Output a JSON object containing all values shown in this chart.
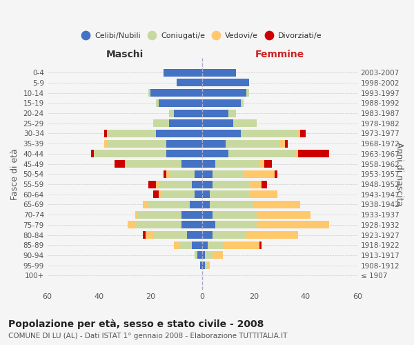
{
  "age_groups": [
    "100+",
    "95-99",
    "90-94",
    "85-89",
    "80-84",
    "75-79",
    "70-74",
    "65-69",
    "60-64",
    "55-59",
    "50-54",
    "45-49",
    "40-44",
    "35-39",
    "30-34",
    "25-29",
    "20-24",
    "15-19",
    "10-14",
    "5-9",
    "0-4"
  ],
  "birth_years": [
    "≤ 1907",
    "1908-1912",
    "1913-1917",
    "1918-1922",
    "1923-1927",
    "1928-1932",
    "1933-1937",
    "1938-1942",
    "1943-1947",
    "1948-1952",
    "1953-1957",
    "1958-1962",
    "1963-1967",
    "1968-1972",
    "1973-1977",
    "1978-1982",
    "1983-1987",
    "1988-1992",
    "1993-1997",
    "1998-2002",
    "2003-2007"
  ],
  "maschi": {
    "celibi": [
      0,
      1,
      2,
      4,
      6,
      8,
      8,
      5,
      3,
      4,
      3,
      8,
      14,
      14,
      18,
      13,
      11,
      17,
      20,
      10,
      15
    ],
    "coniugati": [
      0,
      0,
      1,
      5,
      13,
      18,
      17,
      16,
      13,
      13,
      10,
      22,
      28,
      23,
      19,
      6,
      2,
      1,
      1,
      0,
      0
    ],
    "vedovi": [
      0,
      0,
      0,
      2,
      3,
      3,
      1,
      2,
      1,
      1,
      1,
      0,
      0,
      1,
      0,
      0,
      0,
      0,
      0,
      0,
      0
    ],
    "divorziati": [
      0,
      0,
      0,
      0,
      1,
      0,
      0,
      0,
      2,
      3,
      1,
      4,
      1,
      0,
      1,
      0,
      0,
      0,
      0,
      0,
      0
    ]
  },
  "femmine": {
    "nubili": [
      0,
      1,
      1,
      2,
      4,
      5,
      4,
      3,
      3,
      4,
      4,
      5,
      10,
      9,
      15,
      12,
      10,
      15,
      17,
      18,
      13
    ],
    "coniugate": [
      0,
      1,
      3,
      6,
      13,
      16,
      17,
      17,
      15,
      14,
      12,
      17,
      26,
      21,
      22,
      9,
      3,
      1,
      1,
      0,
      0
    ],
    "vedove": [
      0,
      1,
      4,
      14,
      20,
      28,
      21,
      18,
      11,
      5,
      12,
      2,
      1,
      2,
      1,
      0,
      0,
      0,
      0,
      0,
      0
    ],
    "divorziate": [
      0,
      0,
      0,
      1,
      0,
      0,
      0,
      0,
      0,
      2,
      1,
      3,
      12,
      1,
      2,
      0,
      0,
      0,
      0,
      0,
      0
    ]
  },
  "color_celibi": "#4472c4",
  "color_coniugati": "#c8d9a0",
  "color_vedovi": "#ffc86b",
  "color_divorziati": "#cc0000",
  "title": "Popolazione per età, sesso e stato civile - 2008",
  "subtitle": "COMUNE DI LU (AL) - Dati ISTAT 1° gennaio 2008 - Elaborazione TUTTITALIA.IT",
  "xlabel_left": "Maschi",
  "xlabel_right": "Femmine",
  "ylabel_left": "Fasce di età",
  "ylabel_right": "Anni di nascita",
  "xlim": 60,
  "legend_labels": [
    "Celibi/Nubili",
    "Coniugati/e",
    "Vedovi/e",
    "Divorziati/e"
  ],
  "bg_color": "#f5f5f5"
}
